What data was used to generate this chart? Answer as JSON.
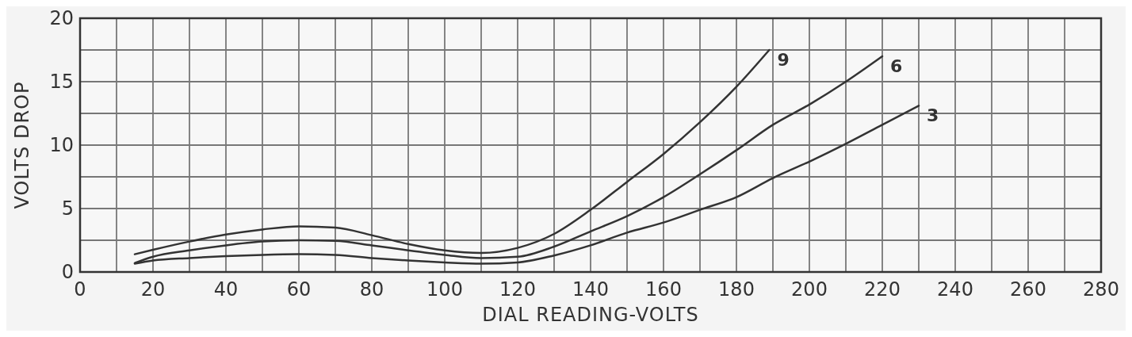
{
  "chart_data": {
    "type": "line",
    "xlabel": "DIAL READING-VOLTS",
    "ylabel": "VOLTS DROP",
    "xlim": [
      0,
      280
    ],
    "xticks": [
      0,
      {
        "value": 10,
        "label": null
      },
      20,
      {
        "value": 30,
        "label": null
      },
      40,
      {
        "value": 50,
        "label": null
      },
      60,
      {
        "value": 70,
        "label": null
      },
      80,
      {
        "value": 90,
        "label": null
      },
      100,
      {
        "value": 110,
        "label": null
      },
      120,
      {
        "value": 130,
        "label": null
      },
      140,
      {
        "value": 150,
        "label": null
      },
      160,
      {
        "value": 170,
        "label": null
      },
      180,
      {
        "value": 190,
        "label": null
      },
      200,
      {
        "value": 210,
        "label": null
      },
      220,
      {
        "value": 230,
        "label": null
      },
      240,
      {
        "value": 250,
        "label": null
      },
      260,
      {
        "value": 270,
        "label": null
      },
      280
    ],
    "ylim": [
      0,
      20
    ],
    "yticks": [
      0,
      {
        "value": 2.5,
        "label": null
      },
      5,
      {
        "value": 7.5,
        "label": null
      },
      10,
      {
        "value": 12.5,
        "label": null
      },
      15,
      {
        "value": 17.5,
        "label": null
      },
      20
    ],
    "grid": true,
    "marker": "none",
    "line_style": "solid",
    "series": [
      {
        "name": "9",
        "color": "#333333",
        "x": [
          15,
          20,
          30,
          40,
          50,
          60,
          70,
          80,
          90,
          100,
          110,
          120,
          130,
          140,
          150,
          160,
          170,
          180,
          189
        ],
        "values": [
          1.4,
          1.75,
          2.4,
          2.95,
          3.35,
          3.6,
          3.5,
          2.9,
          2.2,
          1.7,
          1.5,
          1.9,
          3.0,
          4.9,
          7.1,
          9.3,
          11.8,
          14.6,
          17.5
        ]
      },
      {
        "name": "6",
        "color": "#333333",
        "x": [
          15,
          20,
          30,
          40,
          50,
          60,
          70,
          80,
          90,
          100,
          110,
          120,
          130,
          140,
          150,
          160,
          170,
          180,
          190,
          200,
          210,
          220
        ],
        "values": [
          0.7,
          1.2,
          1.7,
          2.1,
          2.4,
          2.5,
          2.45,
          2.1,
          1.7,
          1.35,
          1.1,
          1.2,
          2.0,
          3.2,
          4.4,
          5.9,
          7.7,
          9.6,
          11.6,
          13.2,
          15.0,
          17.0
        ]
      },
      {
        "name": "3",
        "color": "#333333",
        "x": [
          15,
          20,
          30,
          40,
          50,
          60,
          70,
          80,
          90,
          100,
          110,
          120,
          130,
          140,
          150,
          160,
          170,
          180,
          190,
          200,
          210,
          220,
          230
        ],
        "values": [
          0.65,
          0.9,
          1.1,
          1.25,
          1.35,
          1.4,
          1.35,
          1.1,
          0.9,
          0.75,
          0.65,
          0.75,
          1.3,
          2.1,
          3.1,
          3.9,
          4.9,
          5.9,
          7.4,
          8.7,
          10.1,
          11.6,
          13.1
        ]
      }
    ]
  }
}
